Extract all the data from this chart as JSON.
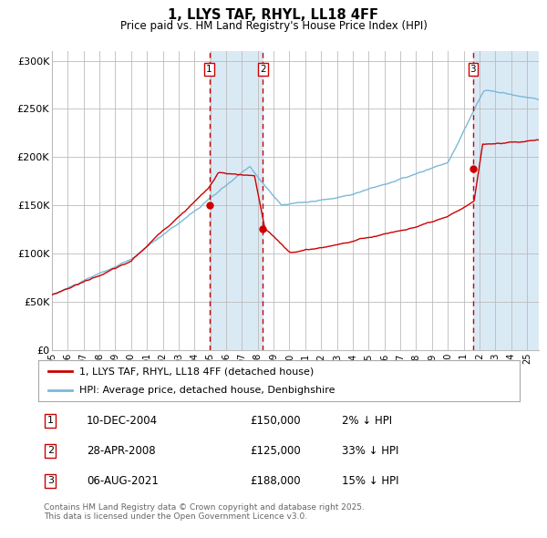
{
  "title": "1, LLYS TAF, RHYL, LL18 4FF",
  "subtitle": "Price paid vs. HM Land Registry's House Price Index (HPI)",
  "legend_entries": [
    "1, LLYS TAF, RHYL, LL18 4FF (detached house)",
    "HPI: Average price, detached house, Denbighshire"
  ],
  "table_entries": [
    {
      "num": 1,
      "date": "10-DEC-2004",
      "price": "£150,000",
      "hpi": "2% ↓ HPI"
    },
    {
      "num": 2,
      "date": "28-APR-2008",
      "price": "£125,000",
      "hpi": "33% ↓ HPI"
    },
    {
      "num": 3,
      "date": "06-AUG-2021",
      "price": "£188,000",
      "hpi": "15% ↓ HPI"
    }
  ],
  "copyright": "Contains HM Land Registry data © Crown copyright and database right 2025.\nThis data is licensed under the Open Government Licence v3.0.",
  "hpi_color": "#7ab8d9",
  "price_color": "#cc0000",
  "dot_color": "#cc0000",
  "shade_color": "#daeaf5",
  "vline_color": "#cc0000",
  "background_color": "#ffffff",
  "grid_color": "#bbbbbb",
  "ylim": [
    0,
    310000
  ],
  "yticks": [
    0,
    50000,
    100000,
    150000,
    200000,
    250000,
    300000
  ],
  "ytick_labels": [
    "£0",
    "£50K",
    "£100K",
    "£150K",
    "£200K",
    "£250K",
    "£300K"
  ],
  "sale1_x": 2004.94,
  "sale1_y": 150000,
  "sale2_x": 2008.33,
  "sale2_y": 125000,
  "sale3_x": 2021.6,
  "sale3_y": 188000,
  "shade1_x1": 2004.94,
  "shade1_x2": 2008.33,
  "shade2_x1": 2021.6,
  "shade2_x2": 2025.75,
  "vline1_x": 2004.94,
  "vline2_x": 2008.33,
  "vline3_x": 2021.6,
  "xmin": 1995.0,
  "xmax": 2025.75
}
